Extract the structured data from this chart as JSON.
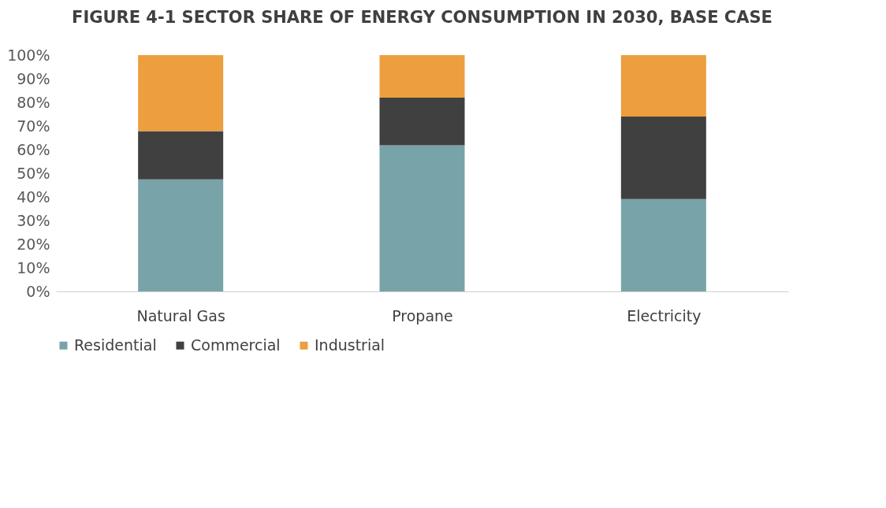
{
  "chart_data": {
    "type": "bar",
    "title": "FIGURE 4-1  SECTOR SHARE OF ENERGY CONSUMPTION IN 2030, BASE CASE",
    "stacked": true,
    "categories": [
      "Natural Gas",
      "Propane",
      "Electricity"
    ],
    "series": [
      {
        "name": "Residential",
        "color": "#78a3a8",
        "values": [
          47.4,
          61.8,
          39.1
        ]
      },
      {
        "name": "Commercial",
        "color": "#404040",
        "values": [
          20.4,
          20.2,
          34.9
        ]
      },
      {
        "name": "Industrial",
        "color": "#ed9e3e",
        "values": [
          32.2,
          18.0,
          26.0
        ]
      }
    ],
    "ylim": [
      0,
      100
    ],
    "yticks": [
      {
        "value": 0,
        "label": "0%"
      },
      {
        "value": 10,
        "label": "10%"
      },
      {
        "value": 20,
        "label": "20%"
      },
      {
        "value": 30,
        "label": "30%"
      },
      {
        "value": 40,
        "label": "40%"
      },
      {
        "value": 50,
        "label": "50%"
      },
      {
        "value": 60,
        "label": "60%"
      },
      {
        "value": 70,
        "label": "70%"
      },
      {
        "value": 80,
        "label": "80%"
      },
      {
        "value": 90,
        "label": "90%"
      },
      {
        "value": 100,
        "label": "100%"
      }
    ],
    "grid": false,
    "legend": "bottom"
  }
}
